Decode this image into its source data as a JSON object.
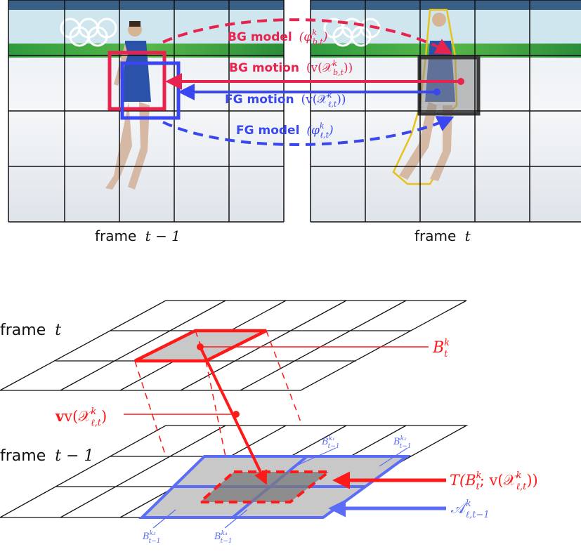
{
  "panels": {
    "left_caption_word": "frame",
    "left_caption_math": "t − 1",
    "right_caption_word": "frame",
    "right_caption_math": "t"
  },
  "top_labels": {
    "bg_model": {
      "text": "BG model",
      "math": "(φ",
      "sup": "k",
      "sub": "b,t",
      "close": ")"
    },
    "bg_motion": {
      "text": "BG motion",
      "math": "(v(𝒳",
      "sup": "k",
      "sub": "b,t",
      "close": "))"
    },
    "fg_motion": {
      "text": "FG motion",
      "math": "(v(𝒳",
      "sup": "k",
      "sub": "ℓ,t",
      "close": "))"
    },
    "fg_model": {
      "text": "FG model",
      "math": "(φ",
      "sup": "k",
      "sub": "ℓ,t",
      "close": ")"
    }
  },
  "bottom_labels": {
    "frame_t_word": "frame",
    "frame_t_math": "t",
    "frame_t1_word": "frame",
    "frame_t1_math": "t − 1",
    "Btk_base": "B",
    "Btk_sup": "k",
    "Btk_sub": "t",
    "motion_base": "v(𝒳",
    "motion_sup": "k",
    "motion_sub": "ℓ,t",
    "motion_close": ")",
    "transform_text": "T(B",
    "transform_sup": "k",
    "transform_sub": "t",
    "transform_mid": "; v(𝒳",
    "transform_sup2": "k",
    "transform_sub2": "ℓ,t",
    "transform_close": "))",
    "A_base": "𝒜",
    "A_sup": "k",
    "A_sub": "ℓ,t−1",
    "B1_base": "B",
    "B1_sup": "k₁",
    "B1_sub": "t−1",
    "B2_base": "B",
    "B2_sup": "k₂",
    "B2_sub": "t−1",
    "B3_base": "B",
    "B3_sup": "k₃",
    "B3_sub": "t−1",
    "B4_base": "B",
    "B4_sup": "k₄",
    "B4_sub": "t−1"
  },
  "colors": {
    "bg_red": "#e8234e",
    "fg_blue": "#3a47f0",
    "pure_red": "#ff1a1a",
    "light_blue": "#5b6cf6",
    "grid": "#111111",
    "highlight_gray": "#c8c8c8",
    "dark_gray": "#7a7a7a",
    "skater_outline": "#e8c21a"
  }
}
